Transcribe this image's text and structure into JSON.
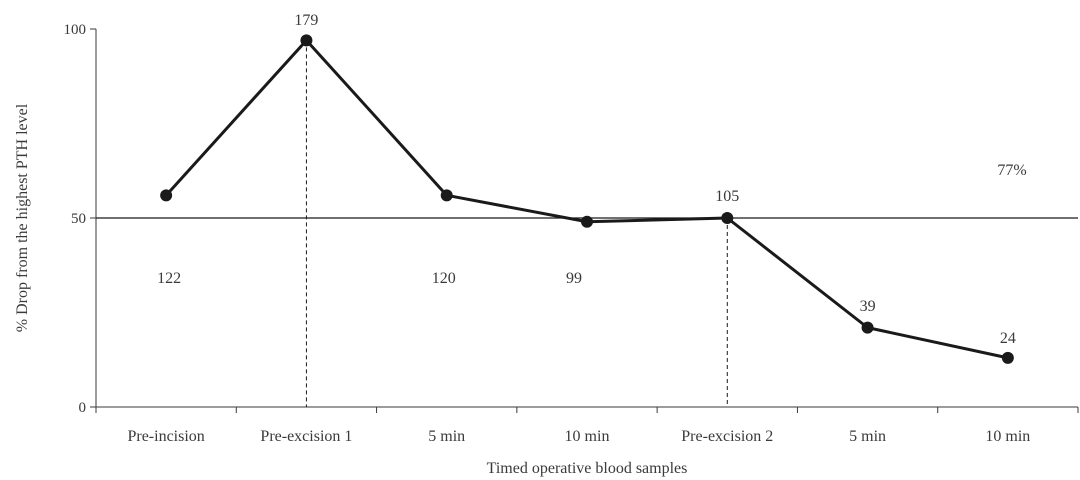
{
  "chart_data": {
    "type": "line",
    "xlabel": "Timed operative blood samples",
    "ylabel": "% Drop from the highest PTH level",
    "ylim": [
      0,
      100
    ],
    "yticks": [
      "0",
      "50",
      "100"
    ],
    "categories": [
      "Pre-incision",
      "Pre-excision 1",
      "5 min",
      "10 min",
      "Pre-excision 2",
      "5 min",
      "10 min"
    ],
    "series": [
      {
        "values": [
          56,
          97,
          56,
          49,
          50,
          21,
          13
        ]
      }
    ],
    "point_labels": [
      "122",
      "179",
      "120",
      "99",
      "105",
      "39",
      "24"
    ],
    "reference_line": 50,
    "annotation": "77%",
    "grid": false,
    "line_color": "#1a1a1a",
    "axis_color": "#3a3a3a"
  }
}
